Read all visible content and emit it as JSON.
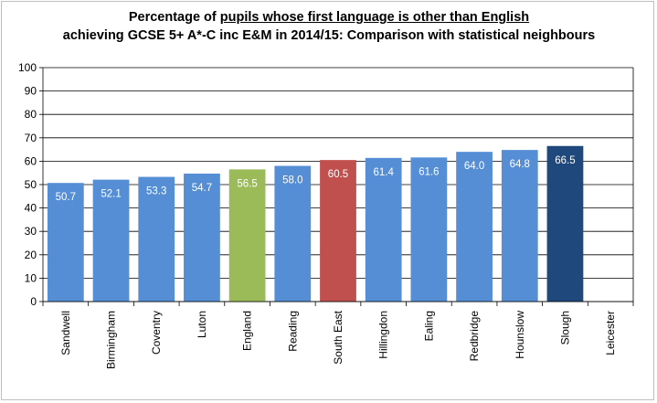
{
  "chart_data": {
    "type": "bar",
    "title_line1_prefix": "Percentage of ",
    "title_line1_underlined": "pupils whose first language is other than English",
    "title_line2": "achieving GCSE 5+ A*-C inc E&M in 2014/15: Comparison with statistical neighbours",
    "categories": [
      "Sandwell",
      "Birmingham",
      "Coventry",
      "Luton",
      "England",
      "Reading",
      "South East",
      "Hillingdon",
      "Ealing",
      "Redbridge",
      "Hounslow",
      "Slough",
      "Leicester"
    ],
    "values": [
      50.7,
      52.1,
      53.3,
      54.7,
      56.5,
      58.0,
      60.5,
      61.4,
      61.6,
      64.0,
      64.8,
      66.5,
      null
    ],
    "value_labels": [
      "50.7",
      "52.1",
      "53.3",
      "54.7",
      "56.5",
      "58.0",
      "60.5",
      "61.4",
      "61.6",
      "64.0",
      "64.8",
      "66.5",
      ""
    ],
    "colors": [
      "#558ed5",
      "#558ed5",
      "#558ed5",
      "#558ed5",
      "#9bbb59",
      "#558ed5",
      "#c0504d",
      "#558ed5",
      "#558ed5",
      "#558ed5",
      "#558ed5",
      "#1f497d",
      "#558ed5"
    ],
    "yticks": [
      "0",
      "10",
      "20",
      "30",
      "40",
      "50",
      "60",
      "70",
      "80",
      "90",
      "100"
    ],
    "ylim": [
      0,
      100
    ],
    "grid": true
  }
}
